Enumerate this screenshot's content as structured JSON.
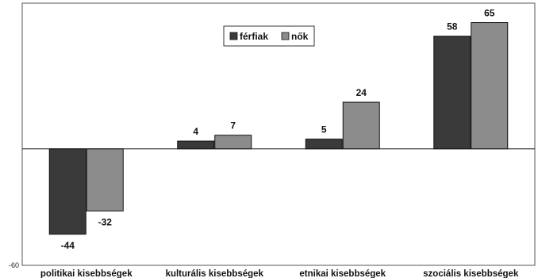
{
  "chart_data": {
    "type": "bar",
    "title": "",
    "xlabel": "",
    "ylabel": "",
    "categories": [
      "politikai kisebbségek",
      "kulturális kisebbségek",
      "etnikai kisebbségek",
      "szociális kisebbségek"
    ],
    "series": [
      {
        "name": "férfiak",
        "values": [
          -44,
          4,
          5,
          58
        ],
        "color": "#3a3a3a"
      },
      {
        "name": "nők",
        "values": [
          -32,
          7,
          24,
          65
        ],
        "color": "#8c8c8c"
      }
    ],
    "ylim": [
      -60,
      75
    ],
    "y_tick_labels": [
      -60
    ],
    "legend_position": "top-center",
    "grid": false
  }
}
